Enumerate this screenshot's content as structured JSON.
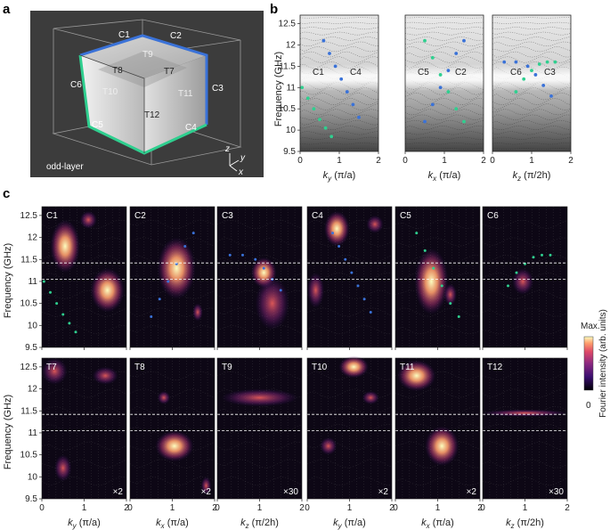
{
  "panel_labels": {
    "a": "a",
    "b": "b",
    "c": "c"
  },
  "panel_a": {
    "caption": "odd-layer",
    "corners": [
      "C1",
      "C2",
      "C3",
      "C4",
      "C5",
      "C6"
    ],
    "faces": [
      "T7",
      "T8",
      "T9",
      "T10",
      "T11",
      "T12"
    ],
    "axes": [
      "z",
      "y",
      "x"
    ],
    "colors": {
      "background": "#3c3c3c",
      "blue": "#3a72d8",
      "green": "#2fcf8f"
    }
  },
  "panel_b": {
    "ylabel": "Frequency (GHz)",
    "yticks": [
      "9.5",
      "10",
      "10.5",
      "11",
      "11.5",
      "12",
      "12.5"
    ],
    "ylim": [
      9.5,
      12.7
    ],
    "gap": [
      11.05,
      11.42
    ],
    "subplots": [
      {
        "xlabel_var": "k",
        "xlabel_sub": "y",
        "xlabel_unit": " (π/a)",
        "xticks": [
          "0",
          "1",
          "2"
        ],
        "curves": [
          {
            "label": "C1",
            "color": "#2fcf8f"
          },
          {
            "label": "C4",
            "color": "#3a72d8"
          }
        ]
      },
      {
        "xlabel_var": "k",
        "xlabel_sub": "x",
        "xlabel_unit": " (π/a)",
        "xticks": [
          "0",
          "1",
          "2"
        ],
        "curves": [
          {
            "label": "C5",
            "color": "#2fcf8f"
          },
          {
            "label": "C2",
            "color": "#3a72d8"
          }
        ]
      },
      {
        "xlabel_var": "k",
        "xlabel_sub": "z",
        "xlabel_unit": " (π/2h)",
        "xticks": [
          "0",
          "1",
          "2"
        ],
        "curves": [
          {
            "label": "C6",
            "color": "#2fcf8f"
          },
          {
            "label": "C3",
            "color": "#3a72d8"
          }
        ]
      }
    ]
  },
  "panel_c": {
    "ylabel": "Frequency (GHz)",
    "yticks": [
      "9.5",
      "10",
      "10.5",
      "11",
      "11.5",
      "12",
      "12.5"
    ],
    "colorbar": {
      "label": "Fourier intensity (arb. units)",
      "max": "Max.",
      "min": "0"
    },
    "xlabels": [
      {
        "var": "k",
        "sub": "y",
        "unit": " (π/a)"
      },
      {
        "var": "k",
        "sub": "x",
        "unit": " (π/a)"
      },
      {
        "var": "k",
        "sub": "z",
        "unit": " (π/2h)"
      },
      {
        "var": "k",
        "sub": "y",
        "unit": " (π/a)"
      },
      {
        "var": "k",
        "sub": "x",
        "unit": " (π/a)"
      },
      {
        "var": "k",
        "sub": "z",
        "unit": " (π/2h)"
      }
    ],
    "xticks": [
      "0",
      "1",
      "2"
    ],
    "top": [
      "C1",
      "C2",
      "C3",
      "C4",
      "C5",
      "C6"
    ],
    "bottom": [
      "T7",
      "T8",
      "T9",
      "T10",
      "T11",
      "T12"
    ],
    "scales": [
      "×2",
      "×2",
      "×30",
      "×2",
      "×2",
      "×30"
    ]
  },
  "chart_data": {
    "type": "scatter",
    "title": "",
    "ylabel": "Frequency (GHz)",
    "ylim": [
      9.5,
      12.7
    ],
    "xlim": [
      0,
      2
    ],
    "series": [
      {
        "name": "C1",
        "x": [
          0.05,
          0.2,
          0.35,
          0.5,
          0.65,
          0.8
        ],
        "y": [
          11.0,
          10.75,
          10.5,
          10.25,
          10.05,
          9.85
        ]
      },
      {
        "name": "C4",
        "x": [
          0.6,
          0.75,
          0.9,
          1.05,
          1.2,
          1.35,
          1.5
        ],
        "y": [
          12.1,
          11.8,
          11.5,
          11.2,
          10.9,
          10.6,
          10.3
        ]
      },
      {
        "name": "C2",
        "x": [
          0.5,
          0.7,
          0.9,
          1.1,
          1.3,
          1.5
        ],
        "y": [
          10.2,
          10.6,
          11.0,
          11.4,
          11.8,
          12.1
        ]
      },
      {
        "name": "C5",
        "x": [
          0.5,
          0.7,
          0.9,
          1.1,
          1.3,
          1.5
        ],
        "y": [
          12.1,
          11.7,
          11.3,
          10.9,
          10.5,
          10.2
        ]
      },
      {
        "name": "C6",
        "x": [
          0.6,
          0.8,
          1.0,
          1.2,
          1.4,
          1.6
        ],
        "y": [
          10.9,
          11.2,
          11.4,
          11.55,
          11.6,
          11.6
        ]
      },
      {
        "name": "C3",
        "x": [
          0.3,
          0.6,
          0.9,
          1.1,
          1.3,
          1.5
        ],
        "y": [
          11.6,
          11.6,
          11.5,
          11.3,
          11.05,
          10.8
        ]
      }
    ]
  }
}
